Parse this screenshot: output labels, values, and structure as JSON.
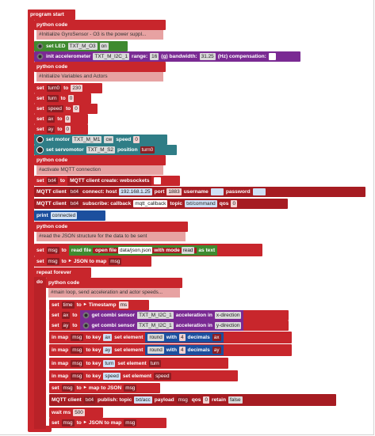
{
  "program": {
    "start_label": "program start",
    "python_code_label": "python code",
    "code1": "#Initialize GyroSensor - O3 is the power suppl...",
    "set_led": "set LED",
    "led_port": "TXT_M_O3",
    "led_state": "on",
    "init_accel": "init accelerometer",
    "accel_port": "TXT_M_I2C_1",
    "range_label": "range:",
    "range_val": "16",
    "g_label": "(g) bandwidth:",
    "bw_val": "31.25",
    "hz_label": "(Hz) compensation:",
    "code2": "#Initialize Variables and Actors",
    "set_label": "set",
    "to_label": "to",
    "vars": [
      {
        "name": "turn0",
        "val": "230"
      },
      {
        "name": "turn",
        "val": "0"
      },
      {
        "name": "speed",
        "val": "0"
      },
      {
        "name": "ax",
        "val": "0"
      },
      {
        "name": "ay",
        "val": "0"
      }
    ],
    "set_motor": "set motor",
    "motor_port": "TXT_M_M1",
    "motor_dir": "cw",
    "speed_label": "speed",
    "motor_speed": "0",
    "set_servo": "set servomotor",
    "servo_port": "TXT_M_S2",
    "position_label": "position",
    "servo_pos": "turn0",
    "code3": "#activate MQTT connection",
    "txt4": "txt4",
    "mqtt_create": "MQTT client create: websockets",
    "mqtt_client": "MQTT client",
    "connect_host": "connect: host",
    "host_val": "192.168.1.25",
    "port_label": "port",
    "port_val": "1883",
    "username_label": "username",
    "password_label": "password",
    "subscribe_label": "subscribe: callback",
    "callback_val": "mqtt_callback",
    "topic_label": "topic",
    "topic_val": "txt/command",
    "qos_label": "qos",
    "qos_val": "0",
    "print_label": "print",
    "print_val": "connected",
    "code4": "#read the JSON structure for the data to be sent",
    "msg": "msg",
    "read_file": "read file",
    "open_file": "open file",
    "file_val": "data/json.json",
    "with_mode": "with mode",
    "mode_val": "read",
    "as_text": "as text",
    "json_to_map": "JSON to map",
    "repeat_forever": "repeat forever",
    "do_label": "do",
    "code5": "#main loop, send acceleration and actor speeds...",
    "time_var": "time",
    "timestamp_label": "Timestamp",
    "ms_val": "ms",
    "get_combi": "get combi sensor",
    "combi_port": "TXT_M_I2C_1",
    "accel_in": "acceleration in",
    "x_dir": "x-direction",
    "y_dir": "y-direction",
    "in_map": "in map",
    "to_key": "to key",
    "set_element": "set element",
    "round_val": "round",
    "with_label": "with",
    "decimals_val": "4",
    "decimals_label": "decimals",
    "key_ax": "ax",
    "key_ay": "ay",
    "key_turn": "turn",
    "key_speed": "speed",
    "map_to_json": "map to JSON",
    "publish_label": "publish: topic",
    "publish_topic": "txt/acc",
    "payload_label": "payload",
    "retain_label": "retain",
    "retain_val": "false",
    "wait_label": "wait ms",
    "wait_val": "500"
  }
}
